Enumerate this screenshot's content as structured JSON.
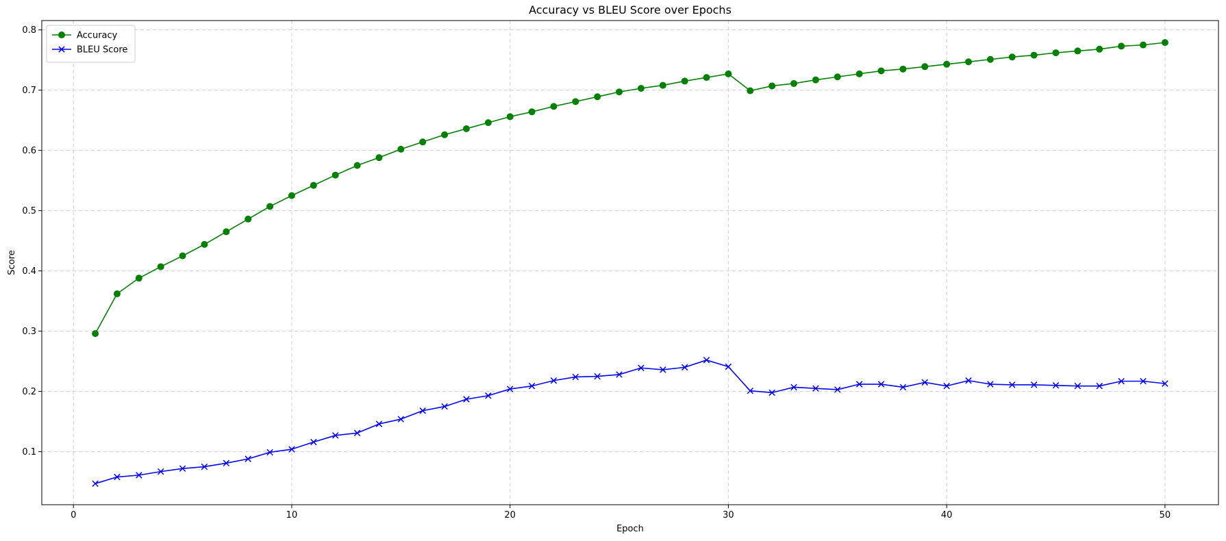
{
  "chart_data": {
    "type": "line",
    "title": "Accuracy vs BLEU Score over Epochs",
    "xlabel": "Epoch",
    "ylabel": "Score",
    "xlim": [
      -1.45,
      52.45
    ],
    "ylim": [
      0.012,
      0.8155
    ],
    "xticks": [
      0,
      10,
      20,
      30,
      40,
      50
    ],
    "yticks": [
      0.1,
      0.2,
      0.3,
      0.4,
      0.5,
      0.6,
      0.7,
      0.8
    ],
    "grid": true,
    "legend_position": "top-left",
    "x": [
      1,
      2,
      3,
      4,
      5,
      6,
      7,
      8,
      9,
      10,
      11,
      12,
      13,
      14,
      15,
      16,
      17,
      18,
      19,
      20,
      21,
      22,
      23,
      24,
      25,
      26,
      27,
      28,
      29,
      30,
      31,
      32,
      33,
      34,
      35,
      36,
      37,
      38,
      39,
      40,
      41,
      42,
      43,
      44,
      45,
      46,
      47,
      48,
      49,
      50
    ],
    "series": [
      {
        "name": "Accuracy",
        "color": "#008000",
        "marker": "circle",
        "values": [
          0.296,
          0.362,
          0.388,
          0.407,
          0.425,
          0.444,
          0.465,
          0.486,
          0.507,
          0.525,
          0.542,
          0.559,
          0.575,
          0.588,
          0.602,
          0.614,
          0.626,
          0.636,
          0.646,
          0.656,
          0.664,
          0.673,
          0.681,
          0.689,
          0.697,
          0.703,
          0.708,
          0.715,
          0.721,
          0.727,
          0.699,
          0.707,
          0.711,
          0.717,
          0.722,
          0.727,
          0.732,
          0.735,
          0.739,
          0.743,
          0.747,
          0.751,
          0.755,
          0.758,
          0.762,
          0.765,
          0.768,
          0.773,
          0.775,
          0.779
        ]
      },
      {
        "name": "BLEU Score",
        "color": "#0000ff",
        "marker": "x",
        "values": [
          0.047,
          0.058,
          0.061,
          0.067,
          0.072,
          0.075,
          0.081,
          0.088,
          0.099,
          0.104,
          0.116,
          0.127,
          0.131,
          0.146,
          0.154,
          0.168,
          0.175,
          0.187,
          0.193,
          0.204,
          0.209,
          0.218,
          0.224,
          0.225,
          0.228,
          0.239,
          0.236,
          0.24,
          0.252,
          0.241,
          0.201,
          0.198,
          0.207,
          0.205,
          0.203,
          0.212,
          0.212,
          0.207,
          0.215,
          0.209,
          0.218,
          0.212,
          0.211,
          0.211,
          0.21,
          0.209,
          0.209,
          0.217,
          0.217,
          0.213
        ]
      }
    ]
  }
}
